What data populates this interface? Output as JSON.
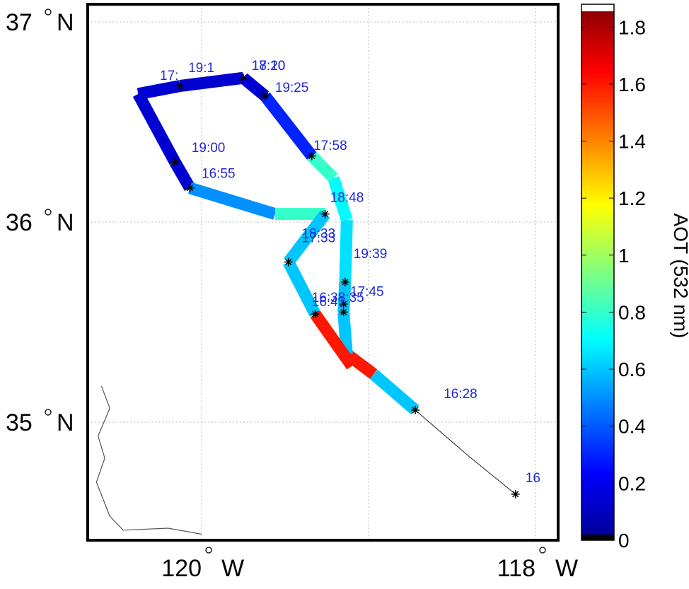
{
  "chart_data": {
    "type": "map",
    "lat_labels": [
      {
        "lat": 37,
        "text": "37",
        "hemi": "N"
      },
      {
        "lat": 36,
        "text": "36",
        "hemi": "N"
      },
      {
        "lat": 35,
        "text": "35",
        "hemi": "N"
      }
    ],
    "lon_labels": [
      {
        "lon": -120,
        "text": "120",
        "hemi": "W"
      },
      {
        "lon": -118,
        "text": "118",
        "hemi": "W"
      }
    ],
    "grid_lats": [
      35,
      36,
      37
    ],
    "grid_lons": [
      -120,
      -119,
      -118
    ],
    "colorbar": {
      "title": "AOT (532 nm)",
      "range": [
        0,
        1.88
      ],
      "ticks": [
        "0",
        "0.2",
        "0.4",
        "0.6",
        "0.8",
        "1",
        "1.2",
        "1.4",
        "1.6",
        "1.8"
      ],
      "tick_values": [
        0,
        0.2,
        0.4,
        0.6,
        0.8,
        1.0,
        1.2,
        1.4,
        1.6,
        1.8
      ]
    },
    "flight_track": [
      {
        "lon": -118.12,
        "lat": 34.64,
        "aot": null
      },
      {
        "lon": -118.4,
        "lat": 34.83,
        "aot": null
      },
      {
        "lon": -118.72,
        "lat": 35.06,
        "aot": null
      },
      {
        "lon": -118.97,
        "lat": 35.24,
        "aot": 0.6
      },
      {
        "lon": -119.13,
        "lat": 35.34,
        "aot": 1.6
      },
      {
        "lon": -119.15,
        "lat": 35.55,
        "aot": 0.6
      },
      {
        "lon": -119.14,
        "lat": 35.7,
        "aot": 0.6
      },
      {
        "lon": -119.13,
        "lat": 36.01,
        "aot": 0.65
      },
      {
        "lon": -119.21,
        "lat": 36.22,
        "aot": 0.7
      },
      {
        "lon": -119.34,
        "lat": 36.33,
        "aot": 0.8
      },
      {
        "lon": -119.62,
        "lat": 36.63,
        "aot": 0.3
      },
      {
        "lon": -119.75,
        "lat": 36.72,
        "aot": 0.15
      },
      {
        "lon": -120.13,
        "lat": 36.68,
        "aot": 0.15
      },
      {
        "lon": -120.38,
        "lat": 36.64,
        "aot": 0.15
      },
      {
        "lon": -120.16,
        "lat": 36.3,
        "aot": 0.15
      },
      {
        "lon": -120.07,
        "lat": 36.17,
        "aot": 0.15
      },
      {
        "lon": -119.56,
        "lat": 36.04,
        "aot": 0.5
      },
      {
        "lon": -119.26,
        "lat": 36.04,
        "aot": 0.8
      },
      {
        "lon": -119.48,
        "lat": 35.8,
        "aot": 0.6
      },
      {
        "lon": -119.32,
        "lat": 35.54,
        "aot": 0.6
      },
      {
        "lon": -119.1,
        "lat": 35.28,
        "aot": 1.6
      }
    ],
    "markers": [
      {
        "lon": -118.12,
        "lat": 34.64
      },
      {
        "lon": -118.72,
        "lat": 35.06
      },
      {
        "lon": -119.15,
        "lat": 35.55
      },
      {
        "lon": -119.15,
        "lat": 35.59
      },
      {
        "lon": -119.14,
        "lat": 35.7
      },
      {
        "lon": -119.32,
        "lat": 35.54
      },
      {
        "lon": -119.48,
        "lat": 35.8
      },
      {
        "lon": -119.26,
        "lat": 36.04
      },
      {
        "lon": -119.34,
        "lat": 36.33
      },
      {
        "lon": -119.62,
        "lat": 36.63
      },
      {
        "lon": -119.75,
        "lat": 36.72
      },
      {
        "lon": -120.13,
        "lat": 36.68
      },
      {
        "lon": -120.16,
        "lat": 36.3
      },
      {
        "lon": -120.07,
        "lat": 36.17
      }
    ],
    "time_labels": [
      {
        "text": "16",
        "lon": -118.06,
        "lat": 34.7
      },
      {
        "text": "16:28",
        "lon": -118.55,
        "lat": 35.12
      },
      {
        "text": "16:38:35",
        "lon": -119.34,
        "lat": 35.6
      },
      {
        "text": "16:41",
        "lon": -119.34,
        "lat": 35.58
      },
      {
        "text": "17:45",
        "lon": -119.11,
        "lat": 35.63
      },
      {
        "text": "19:39",
        "lon": -119.09,
        "lat": 35.82
      },
      {
        "text": "18:33",
        "lon": -119.4,
        "lat": 35.92
      },
      {
        "text": "17:33",
        "lon": -119.4,
        "lat": 35.9
      },
      {
        "text": "18:48",
        "lon": -119.23,
        "lat": 36.1
      },
      {
        "text": "17:58",
        "lon": -119.33,
        "lat": 36.36
      },
      {
        "text": "16:55",
        "lon": -120.0,
        "lat": 36.22
      },
      {
        "text": "19:00",
        "lon": -120.06,
        "lat": 36.35
      },
      {
        "text": "19:25",
        "lon": -119.56,
        "lat": 36.65
      },
      {
        "text": "18:20",
        "lon": -119.7,
        "lat": 36.76
      },
      {
        "text": "17:10",
        "lon": -119.7,
        "lat": 36.76
      },
      {
        "text": "17:",
        "lon": -120.25,
        "lat": 36.71
      },
      {
        "text": "19:1",
        "lon": -120.08,
        "lat": 36.75
      }
    ],
    "coastline": [
      {
        "lon": -120.6,
        "lat": 35.18
      },
      {
        "lon": -120.55,
        "lat": 35.07
      },
      {
        "lon": -120.62,
        "lat": 34.93
      },
      {
        "lon": -120.58,
        "lat": 34.82
      },
      {
        "lon": -120.63,
        "lat": 34.7
      },
      {
        "lon": -120.55,
        "lat": 34.53
      },
      {
        "lon": -120.47,
        "lat": 34.46
      },
      {
        "lon": -120.2,
        "lat": 34.47
      },
      {
        "lon": -120.0,
        "lat": 34.44
      }
    ]
  }
}
